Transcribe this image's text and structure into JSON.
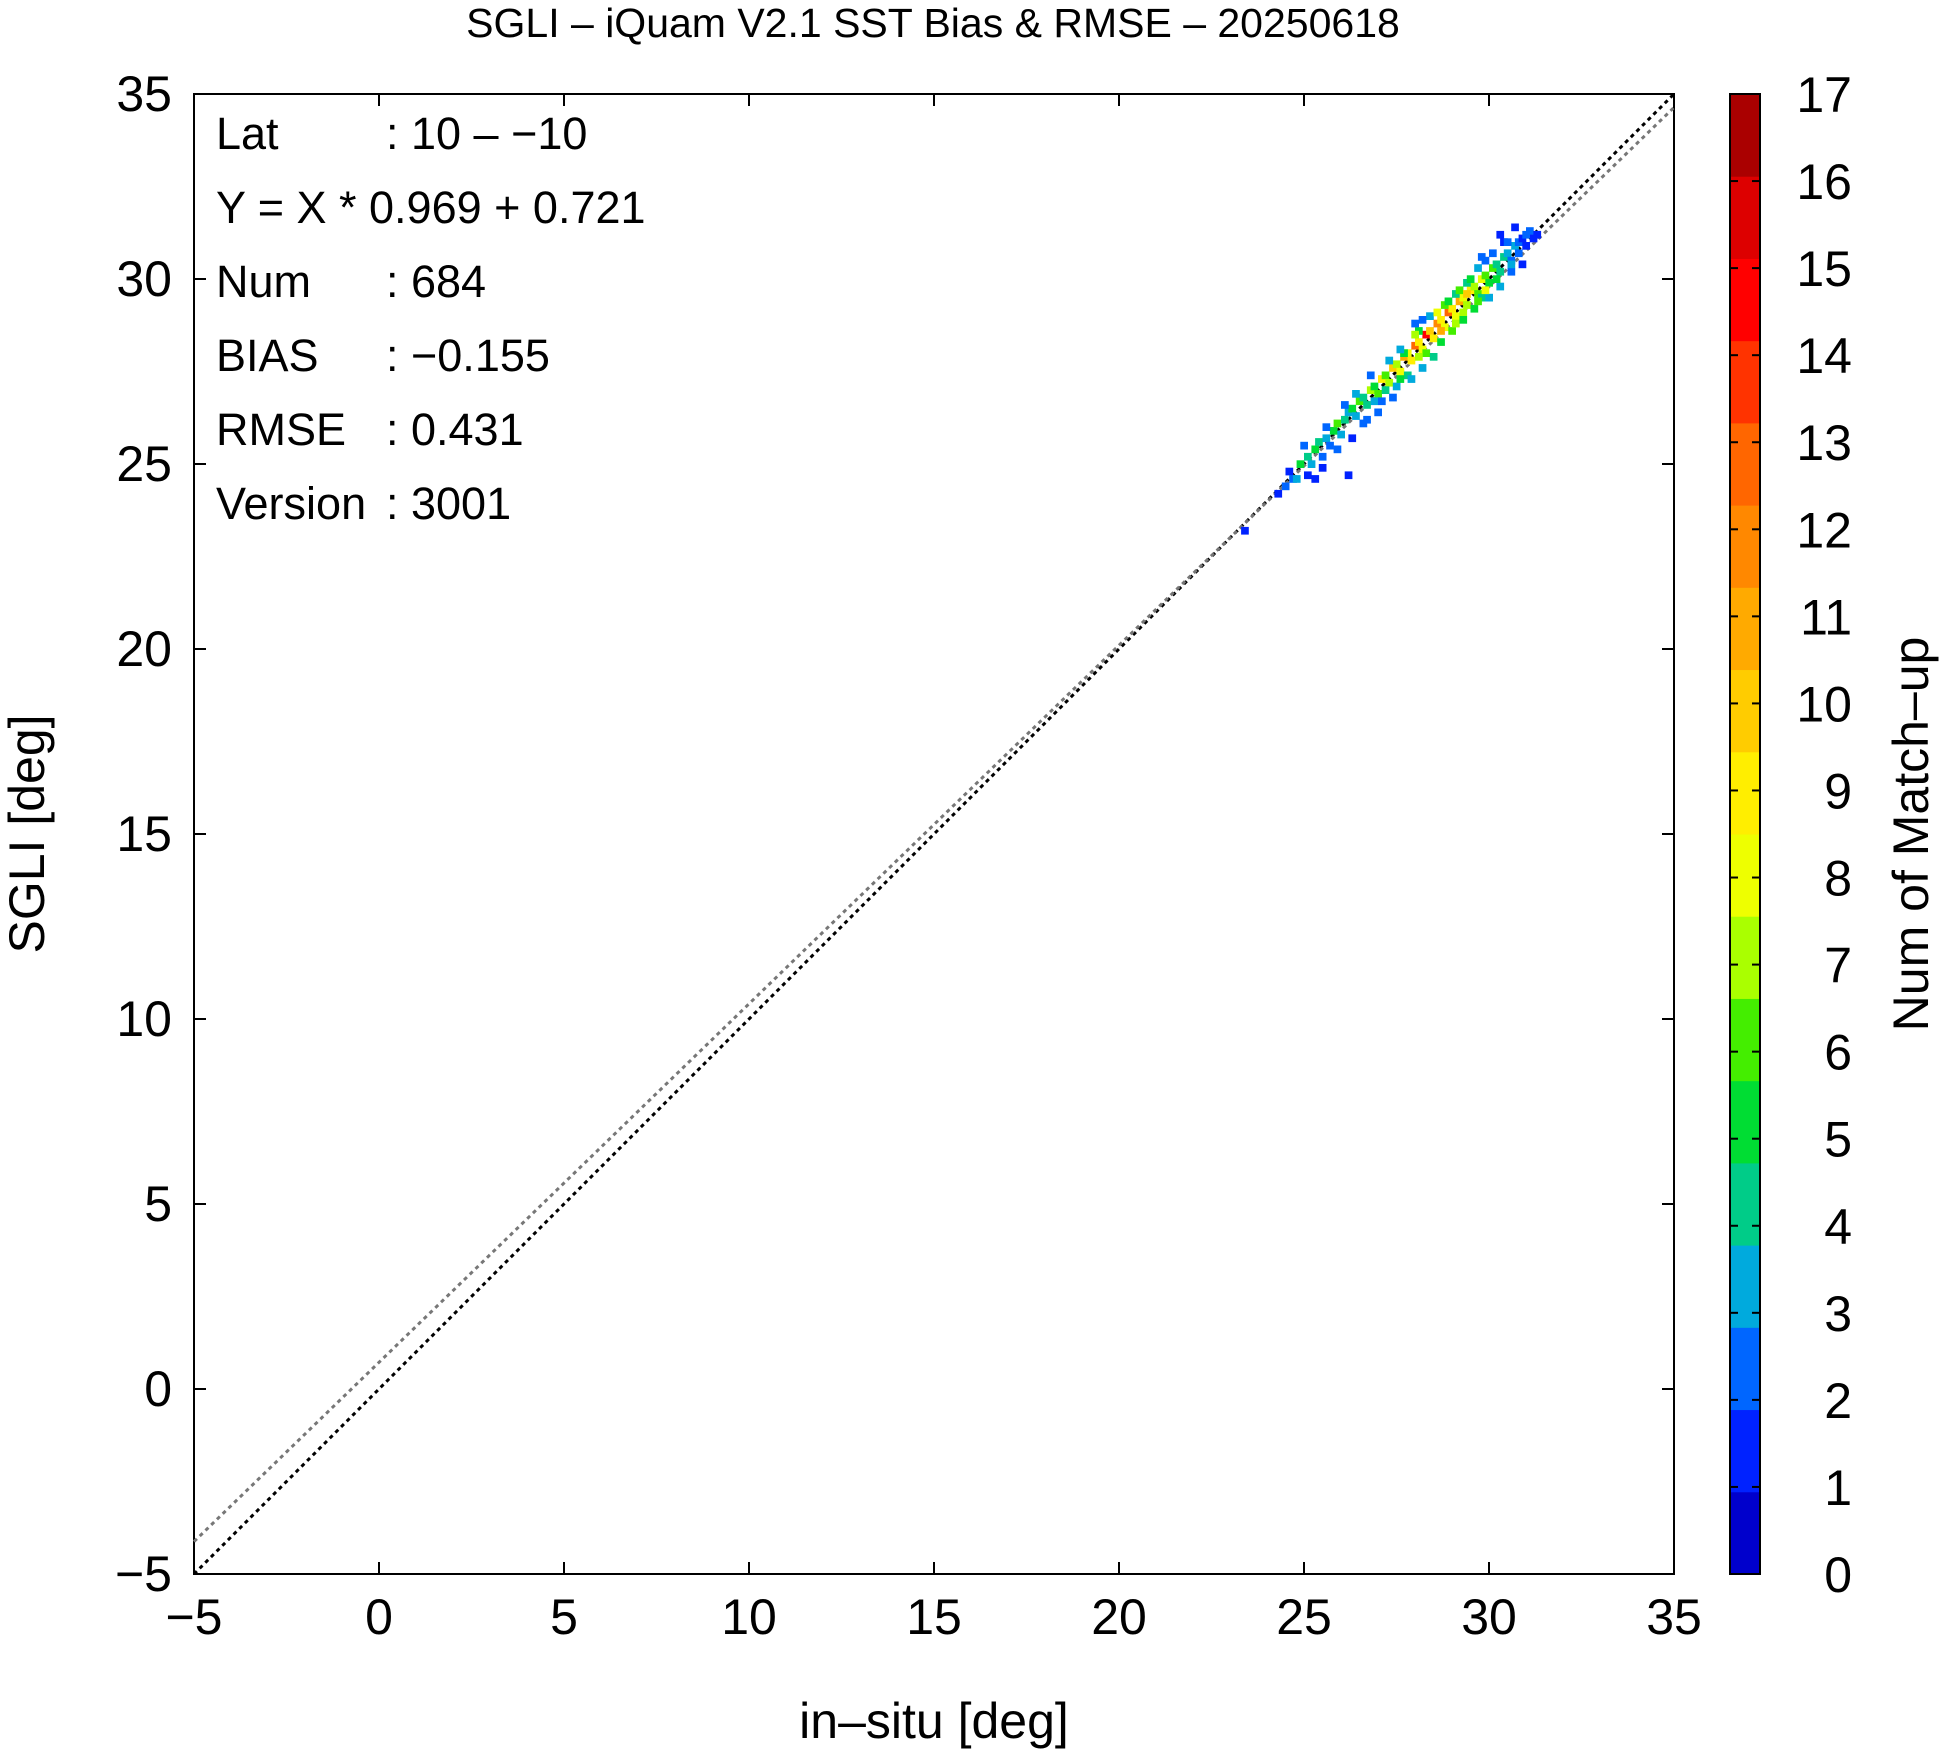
{
  "chart_data": {
    "type": "heatmap",
    "title": "SGLI – iQuam V2.1 SST Bias & RMSE  – 20250618",
    "xlabel": "in–situ [deg]",
    "ylabel": "SGLI [deg]",
    "xlim": [
      -5,
      35
    ],
    "ylim": [
      -5,
      35
    ],
    "x_ticks": [
      "−5",
      "0",
      "5",
      "10",
      "15",
      "20",
      "25",
      "30",
      "35"
    ],
    "y_ticks": [
      "−5",
      "0",
      "5",
      "10",
      "15",
      "20",
      "25",
      "30",
      "35"
    ],
    "colorbar": {
      "label": "Num of Match–up",
      "min": 0,
      "max": 17,
      "ticks": [
        "0",
        "1",
        "2",
        "3",
        "4",
        "5",
        "6",
        "7",
        "8",
        "9",
        "10",
        "11",
        "12",
        "13",
        "14",
        "15",
        "16",
        "17"
      ],
      "colors": [
        "#0000cc",
        "#0022ff",
        "#0066ff",
        "#00aadd",
        "#00cc88",
        "#00dd33",
        "#44ee00",
        "#aaff00",
        "#eeff00",
        "#ffee00",
        "#ffcc00",
        "#ffaa00",
        "#ff8800",
        "#ff6600",
        "#ff3300",
        "#ff0000",
        "#dd0000",
        "#aa0000"
      ]
    },
    "stats": [
      {
        "label": "Lat",
        "value": ": 10 – −10"
      },
      {
        "label": "Y = X * 0.969 + 0.721",
        "value": ""
      },
      {
        "label": "Num",
        "value": ": 684"
      },
      {
        "label": "BIAS",
        "value": ": −0.155"
      },
      {
        "label": "RMSE",
        "value": ": 0.431"
      },
      {
        "label": "Version",
        "value": ": 3001"
      }
    ],
    "lines": [
      {
        "kind": "one-to-one",
        "slope": 1.0,
        "intercept": 0.0,
        "color": "#000000",
        "dash": "dotted"
      },
      {
        "kind": "regression",
        "slope": 0.969,
        "intercept": 0.721,
        "color": "#777777",
        "dash": "dotted"
      }
    ],
    "bin_size": 0.2,
    "cells": [
      [
        23.3,
        23.1,
        1
      ],
      [
        24.2,
        24.1,
        1
      ],
      [
        24.4,
        24.3,
        2
      ],
      [
        24.5,
        24.7,
        1
      ],
      [
        24.6,
        24.5,
        2
      ],
      [
        24.7,
        24.5,
        3
      ],
      [
        24.8,
        24.9,
        5
      ],
      [
        25.0,
        25.1,
        4
      ],
      [
        25.1,
        24.9,
        3
      ],
      [
        25.0,
        24.6,
        1
      ],
      [
        24.9,
        25.4,
        2
      ],
      [
        25.2,
        25.3,
        5
      ],
      [
        25.3,
        25.5,
        4
      ],
      [
        25.4,
        25.1,
        2
      ],
      [
        25.5,
        25.6,
        3
      ],
      [
        25.6,
        25.4,
        2
      ],
      [
        25.7,
        25.8,
        5
      ],
      [
        25.8,
        26.0,
        6
      ],
      [
        25.9,
        25.7,
        3
      ],
      [
        26.0,
        26.1,
        4
      ],
      [
        26.1,
        26.3,
        3
      ],
      [
        26.2,
        26.4,
        5
      ],
      [
        26.3,
        26.2,
        3
      ],
      [
        26.4,
        26.6,
        6
      ],
      [
        26.5,
        26.7,
        4
      ],
      [
        26.6,
        26.5,
        4
      ],
      [
        26.7,
        26.9,
        7
      ],
      [
        26.8,
        27.0,
        5
      ],
      [
        26.9,
        26.8,
        6
      ],
      [
        27.0,
        27.2,
        9
      ],
      [
        27.1,
        27.3,
        6
      ],
      [
        27.2,
        27.1,
        7
      ],
      [
        27.3,
        27.5,
        10
      ],
      [
        27.4,
        27.6,
        7
      ],
      [
        27.5,
        27.4,
        8
      ],
      [
        27.6,
        27.8,
        11
      ],
      [
        27.7,
        27.9,
        8
      ],
      [
        27.8,
        27.7,
        9
      ],
      [
        27.9,
        28.1,
        13
      ],
      [
        28.0,
        28.2,
        9
      ],
      [
        28.1,
        28.0,
        8
      ],
      [
        28.2,
        28.4,
        15
      ],
      [
        28.3,
        28.5,
        10
      ],
      [
        28.4,
        28.3,
        9
      ],
      [
        28.5,
        28.7,
        12
      ],
      [
        28.6,
        28.8,
        9
      ],
      [
        28.7,
        28.6,
        8
      ],
      [
        28.8,
        29.0,
        13
      ],
      [
        28.9,
        29.1,
        9
      ],
      [
        29.0,
        28.9,
        8
      ],
      [
        29.1,
        29.3,
        11
      ],
      [
        29.2,
        29.4,
        8
      ],
      [
        29.3,
        29.2,
        7
      ],
      [
        29.4,
        29.6,
        9
      ],
      [
        29.5,
        29.7,
        7
      ],
      [
        29.6,
        29.5,
        6
      ],
      [
        29.7,
        29.9,
        8
      ],
      [
        29.8,
        30.0,
        6
      ],
      [
        29.9,
        29.8,
        5
      ],
      [
        30.0,
        30.2,
        6
      ],
      [
        30.1,
        30.3,
        4
      ],
      [
        30.2,
        30.1,
        4
      ],
      [
        30.3,
        30.5,
        4
      ],
      [
        30.4,
        30.6,
        3
      ],
      [
        30.5,
        30.4,
        2
      ],
      [
        30.6,
        30.8,
        3
      ],
      [
        30.7,
        30.9,
        2
      ],
      [
        30.8,
        31.0,
        1
      ],
      [
        31.0,
        31.2,
        2
      ],
      [
        31.1,
        31.0,
        1
      ],
      [
        26.8,
        26.6,
        3
      ],
      [
        26.6,
        26.1,
        2
      ],
      [
        27.0,
        26.6,
        2
      ],
      [
        27.4,
        27.0,
        3
      ],
      [
        27.7,
        27.3,
        4
      ],
      [
        27.2,
        27.7,
        3
      ],
      [
        27.1,
        26.9,
        4
      ],
      [
        27.6,
        27.9,
        5
      ],
      [
        27.5,
        28.0,
        3
      ],
      [
        28.0,
        28.5,
        5
      ],
      [
        28.3,
        28.9,
        3
      ],
      [
        28.2,
        27.9,
        6
      ],
      [
        28.6,
        28.2,
        5
      ],
      [
        28.7,
        29.2,
        6
      ],
      [
        29.0,
        29.5,
        4
      ],
      [
        29.3,
        29.8,
        4
      ],
      [
        29.2,
        29.0,
        7
      ],
      [
        29.5,
        29.1,
        5
      ],
      [
        29.7,
        29.4,
        4
      ],
      [
        29.9,
        29.4,
        3
      ],
      [
        30.2,
        29.7,
        3
      ],
      [
        29.6,
        30.2,
        3
      ],
      [
        29.8,
        30.4,
        2
      ],
      [
        30.0,
        30.6,
        2
      ],
      [
        30.3,
        30.9,
        1
      ],
      [
        30.2,
        31.1,
        1
      ],
      [
        30.5,
        30.1,
        2
      ],
      [
        30.8,
        30.3,
        1
      ],
      [
        30.4,
        30.9,
        2
      ],
      [
        30.6,
        31.3,
        1
      ],
      [
        28.9,
        28.5,
        6
      ],
      [
        28.4,
        27.8,
        4
      ],
      [
        28.1,
        27.5,
        3
      ],
      [
        27.8,
        27.2,
        3
      ],
      [
        27.3,
        26.7,
        2
      ],
      [
        26.9,
        26.3,
        2
      ],
      [
        26.5,
        26.0,
        2
      ],
      [
        26.2,
        25.6,
        1
      ],
      [
        25.8,
        25.3,
        2
      ],
      [
        25.4,
        24.8,
        1
      ],
      [
        25.2,
        24.5,
        1
      ],
      [
        26.1,
        24.6,
        1
      ],
      [
        26.0,
        26.5,
        2
      ],
      [
        25.5,
        25.9,
        2
      ],
      [
        26.3,
        26.8,
        3
      ],
      [
        26.7,
        27.3,
        2
      ],
      [
        27.9,
        28.4,
        7
      ],
      [
        28.5,
        29.0,
        8
      ],
      [
        28.8,
        29.3,
        5
      ],
      [
        29.4,
        29.9,
        5
      ],
      [
        29.1,
        29.6,
        6
      ],
      [
        30.9,
        31.1,
        2
      ],
      [
        29.3,
        29.5,
        10
      ],
      [
        28.0,
        27.8,
        7
      ],
      [
        27.5,
        27.2,
        5
      ],
      [
        28.6,
        28.5,
        11
      ],
      [
        29.0,
        28.7,
        7
      ],
      [
        29.6,
        29.3,
        6
      ],
      [
        29.8,
        29.6,
        8
      ],
      [
        30.1,
        29.9,
        5
      ],
      [
        30.5,
        30.3,
        3
      ],
      [
        29.2,
        28.8,
        5
      ],
      [
        30.7,
        30.6,
        2
      ],
      [
        30.9,
        30.8,
        1
      ],
      [
        27.9,
        28.7,
        2
      ],
      [
        28.1,
        28.8,
        2
      ],
      [
        29.7,
        30.5,
        2
      ],
      [
        31.2,
        31.1,
        1
      ]
    ]
  }
}
